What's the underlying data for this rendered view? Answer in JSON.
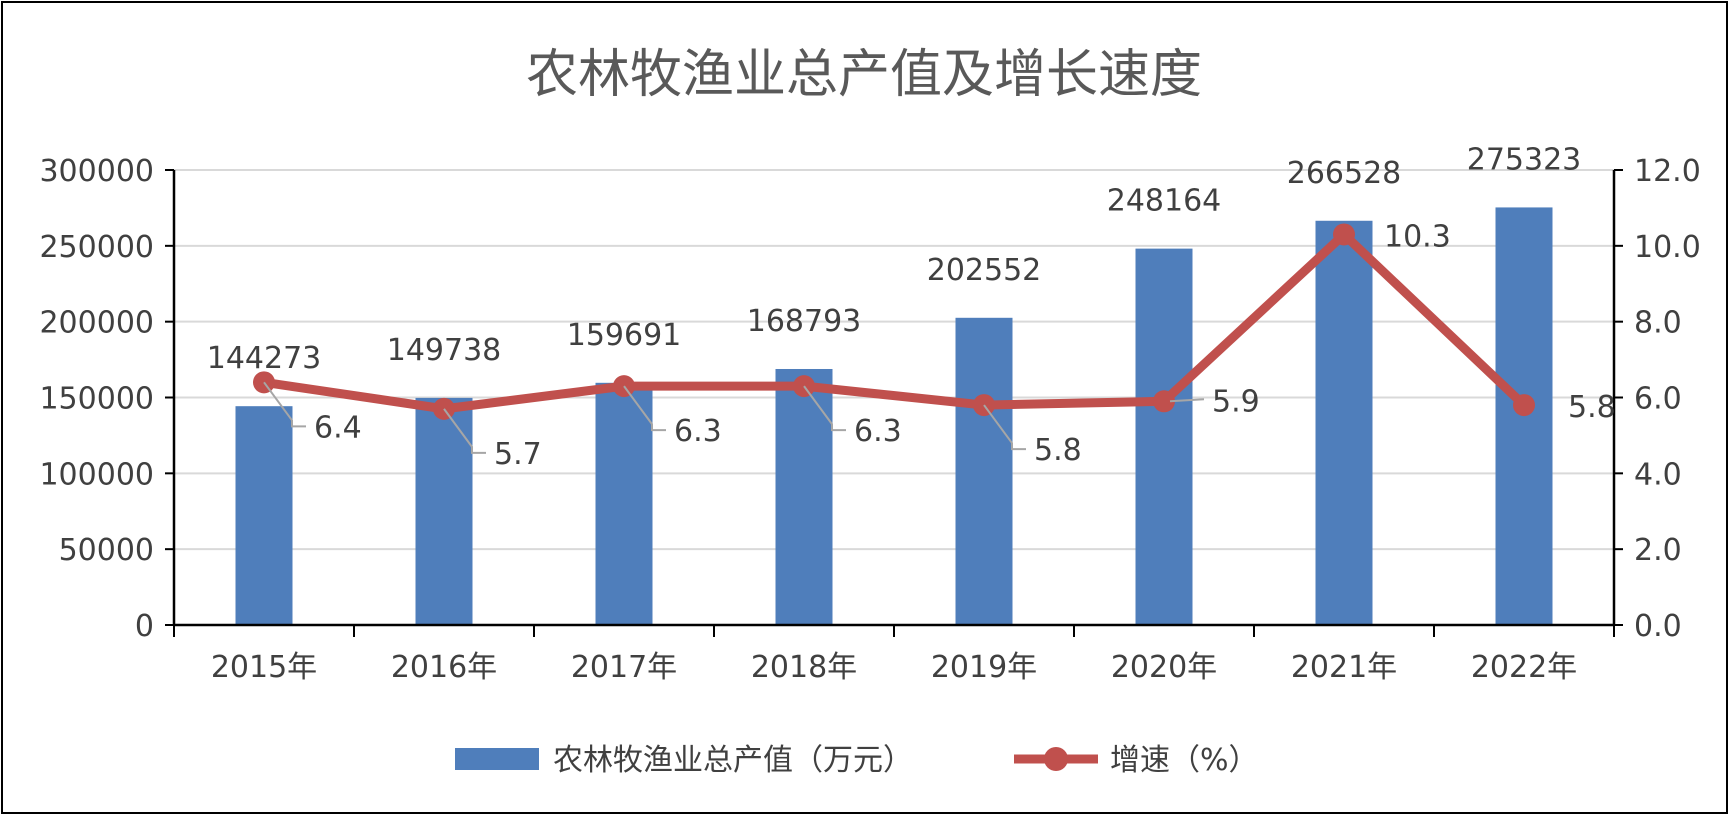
{
  "chart_data": {
    "type": "bar",
    "title": "农林牧渔业总产值及增长速度",
    "categories": [
      "2015年",
      "2016年",
      "2017年",
      "2018年",
      "2019年",
      "2020年",
      "2021年",
      "2022年"
    ],
    "series": [
      {
        "name": "农林牧渔业总产值（万元）",
        "type": "bar",
        "axis": "left",
        "color": "#4F7EBB",
        "values": [
          144273,
          149738,
          159691,
          168793,
          202552,
          248164,
          266528,
          275323
        ],
        "labels": [
          "144273",
          "149738",
          "159691",
          "168793",
          "202552",
          "248164",
          "266528",
          "275323"
        ]
      },
      {
        "name": "增速（%）",
        "type": "line",
        "axis": "right",
        "color": "#C0504D",
        "values": [
          6.4,
          5.7,
          6.3,
          6.3,
          5.8,
          5.9,
          10.3,
          5.8
        ],
        "labels": [
          "6.4",
          "5.7",
          "6.3",
          "6.3",
          "5.8",
          "5.9",
          "10.3",
          "5.8"
        ]
      }
    ],
    "y_left": {
      "range": [
        0,
        300000
      ],
      "ticks": [
        "0",
        "50000",
        "100000",
        "150000",
        "200000",
        "250000",
        "300000"
      ]
    },
    "y_right": {
      "range": [
        0,
        12
      ],
      "ticks": [
        "0.0",
        "2.0",
        "4.0",
        "6.0",
        "8.0",
        "10.0",
        "12.0"
      ]
    },
    "grid": true,
    "legend": "bottom"
  }
}
